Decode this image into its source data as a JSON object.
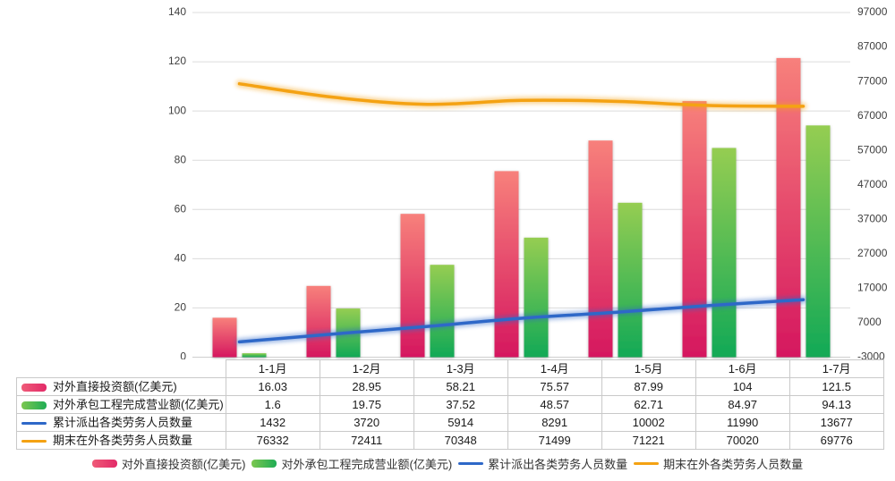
{
  "chart_data": {
    "type": "combo-bar-line",
    "categories": [
      "1-1月",
      "1-2月",
      "1-3月",
      "1-4月",
      "1-5月",
      "1-6月",
      "1-7月"
    ],
    "series": [
      {
        "name": "对外直接投资额(亿美元)",
        "type": "bar",
        "axis": "left",
        "values": [
          16.03,
          28.95,
          58.21,
          75.57,
          87.99,
          104,
          121.5
        ],
        "color_top": "#F7807B",
        "color_bottom": "#D5175F",
        "swatch_from": "#EF5B78",
        "swatch_to": "#E22A68"
      },
      {
        "name": "对外承包工程完成营业额(亿美元)",
        "type": "bar",
        "axis": "left",
        "values": [
          1.6,
          19.75,
          37.52,
          48.57,
          62.71,
          84.97,
          94.13
        ],
        "color_top": "#95CD51",
        "color_bottom": "#12A956",
        "swatch_from": "#7CC750",
        "swatch_to": "#1FAD55"
      },
      {
        "name": "累计派出各类劳务人员数量",
        "type": "line",
        "axis": "right",
        "values": [
          1432,
          3720,
          5914,
          8291,
          10002,
          11990,
          13677
        ],
        "color": "#2E68C8"
      },
      {
        "name": "期末在外各类劳务人员数量",
        "type": "line",
        "axis": "right",
        "values": [
          76332,
          72411,
          70348,
          71499,
          71221,
          70020,
          69776
        ],
        "color": "#F4A213"
      }
    ],
    "left_axis": {
      "min": 0,
      "max": 140,
      "step": 20,
      "ticks": [
        "0",
        "20",
        "40",
        "60",
        "80",
        "100",
        "120",
        "140"
      ]
    },
    "right_axis": {
      "min": -3000,
      "max": 97000,
      "step": 10000,
      "ticks": [
        "-3000",
        "7000",
        "17000",
        "27000",
        "37000",
        "47000",
        "57000",
        "67000",
        "77000",
        "87000",
        "97000"
      ]
    },
    "grid": true,
    "legend_position": "bottom",
    "colors": {
      "gridline": "#dcdcdc",
      "axis_text": "#404040",
      "table_border": "#c9c9c9",
      "table_text": "#1a1a1a"
    }
  }
}
